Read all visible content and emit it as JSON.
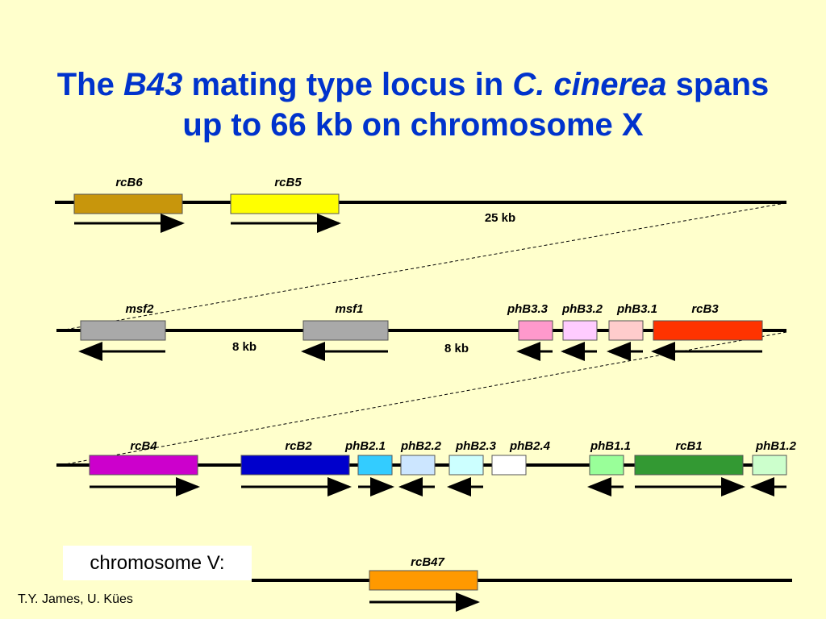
{
  "title": {
    "parts": [
      "The ",
      "B43",
      " mating type locus in ",
      "C. cinerea",
      " spans",
      "up to 66 kb on chromosome X"
    ]
  },
  "rows": [
    {
      "genes": [
        {
          "label": "rcB6",
          "color": "#c8960c"
        },
        {
          "label": "rcB5",
          "color": "#ffff00"
        }
      ],
      "distances": [
        "25 kb"
      ]
    },
    {
      "genes": [
        {
          "label": "msf2",
          "color": "#a9a9a9"
        },
        {
          "label": "msf1",
          "color": "#a9a9a9"
        },
        {
          "label": "phB3.3",
          "color": "#ff99cc"
        },
        {
          "label": "phB3.2",
          "color": "#ffccff"
        },
        {
          "label": "phB3.1",
          "color": "#ffcccc"
        },
        {
          "label": "rcB3",
          "color": "#ff3300"
        }
      ],
      "distances": [
        "8 kb",
        "8 kb"
      ]
    },
    {
      "genes": [
        {
          "label": "rcB4",
          "color": "#cc00cc"
        },
        {
          "label": "rcB2",
          "color": "#0000cc"
        },
        {
          "label": "phB2.1",
          "color": "#33ccff"
        },
        {
          "label": "phB2.2",
          "color": "#cce6ff"
        },
        {
          "label": "phB2.3",
          "color": "#ccffff"
        },
        {
          "label": "phB2.4",
          "color": "#ffffff"
        },
        {
          "label": "phB1.1",
          "color": "#99ff99"
        },
        {
          "label": "rcB1",
          "color": "#339933"
        },
        {
          "label": "phB1.2",
          "color": "#ccffcc"
        }
      ],
      "distances": []
    }
  ],
  "chromosome_v": {
    "label": "chromosome V:",
    "genes": [
      {
        "label": "rcB47",
        "color": "#ff9900"
      }
    ]
  },
  "credit": "T.Y. James, U. Kües"
}
